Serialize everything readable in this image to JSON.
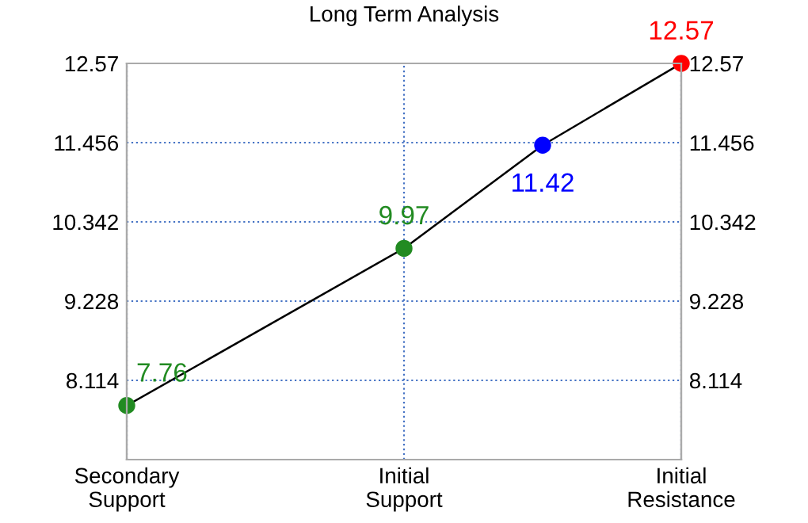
{
  "chart_data": {
    "type": "line",
    "title": "Long Term Analysis",
    "categories": [
      "Secondary\nSupport",
      null,
      null,
      null,
      "Initial\nSupport",
      null,
      null,
      null,
      "Initial\nResistance"
    ],
    "series": [
      {
        "color": "#000000",
        "colors": [
          "#228b22",
          null,
          null,
          null,
          "#228b22",
          null,
          "#0000ff",
          null,
          "#ff0000"
        ],
        "values": [
          7.76,
          null,
          null,
          null,
          9.97,
          null,
          11.42,
          null,
          12.57
        ]
      }
    ],
    "ylim": [
      7,
      12.57
    ],
    "yticks": [
      8.114,
      9.228,
      10.342,
      11.456,
      12.57
    ],
    "y2lim": [
      7,
      12.57
    ],
    "y2ticks": [
      8.114,
      9.228,
      10.342,
      11.456,
      12.57
    ],
    "grid": true,
    "marker": "circle",
    "data_labels": true
  }
}
